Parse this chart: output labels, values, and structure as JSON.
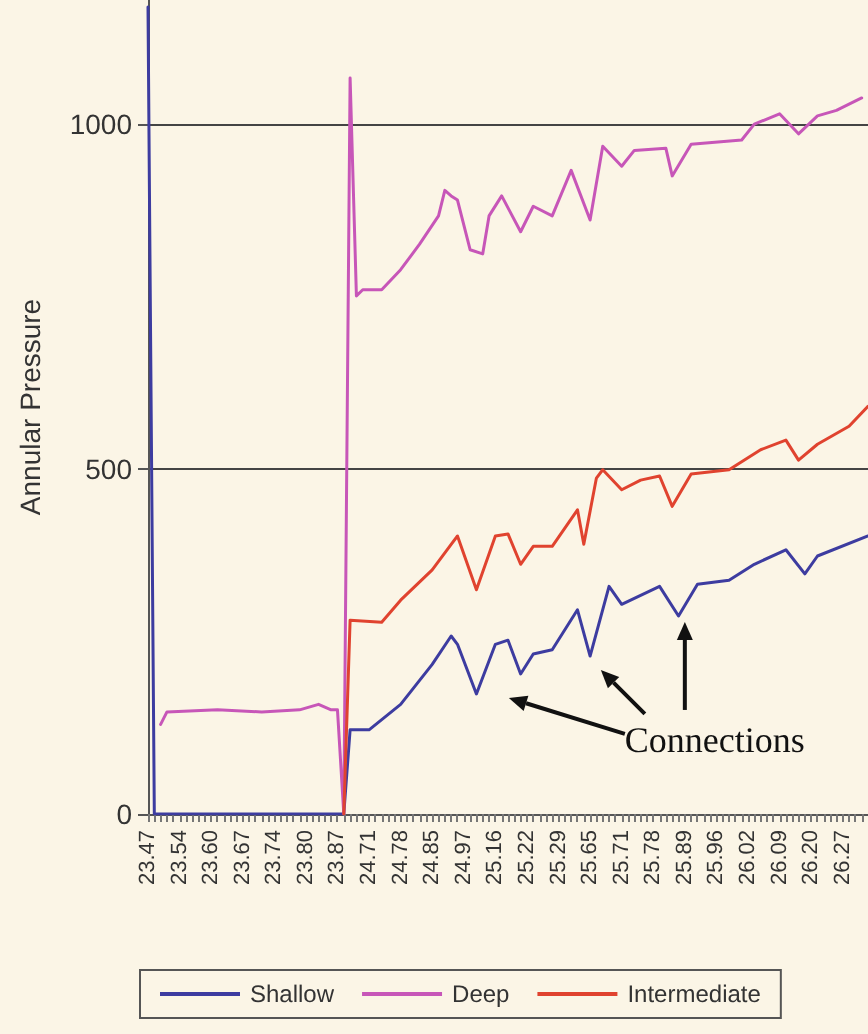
{
  "chart_data": {
    "type": "line",
    "ylabel": "Annular Pressure",
    "categories": [
      "23.47",
      null,
      null,
      null,
      null,
      "23.54",
      null,
      null,
      null,
      null,
      "23.60",
      null,
      null,
      null,
      null,
      "23.67",
      null,
      null,
      null,
      null,
      "23.74",
      null,
      null,
      null,
      null,
      "23.80",
      null,
      null,
      null,
      null,
      "23.87",
      null,
      null,
      null,
      null,
      "24.71",
      null,
      null,
      null,
      null,
      "24.78",
      null,
      null,
      null,
      null,
      "24.85",
      null,
      null,
      null,
      null,
      "24.97",
      null,
      null,
      null,
      null,
      "25.16",
      null,
      null,
      null,
      null,
      "25.22",
      null,
      null,
      null,
      null,
      "25.29",
      null,
      null,
      null,
      null,
      "25.65",
      null,
      null,
      null,
      null,
      "25.71",
      null,
      null,
      null,
      null,
      "25.78",
      null,
      null,
      null,
      null,
      "25.89",
      null,
      null,
      null,
      null,
      "25.96",
      null,
      null,
      null,
      null,
      "26.02",
      null,
      null,
      null,
      null,
      "26.09",
      null,
      null,
      null,
      null,
      "26.20",
      null,
      null,
      null,
      null,
      "26.27",
      null,
      null,
      null,
      null
    ],
    "series": [
      {
        "name": "Shallow",
        "color": "#3d3ca0",
        "values": [
          1170,
          0,
          null,
          null,
          null,
          null,
          null,
          null,
          null,
          null,
          null,
          null,
          null,
          null,
          null,
          null,
          null,
          null,
          null,
          null,
          null,
          null,
          null,
          null,
          null,
          null,
          null,
          null,
          null,
          null,
          null,
          0,
          122,
          null,
          null,
          122,
          null,
          null,
          null,
          null,
          159,
          null,
          null,
          null,
          null,
          217,
          null,
          null,
          258,
          246,
          null,
          null,
          174,
          null,
          null,
          246,
          null,
          252,
          null,
          203,
          null,
          232,
          null,
          null,
          238,
          null,
          null,
          null,
          296,
          null,
          229,
          null,
          null,
          330,
          null,
          304,
          null,
          null,
          null,
          null,
          null,
          330,
          null,
          null,
          287,
          null,
          null,
          333,
          null,
          null,
          null,
          null,
          339,
          null,
          null,
          null,
          362,
          null,
          null,
          null,
          null,
          383,
          null,
          null,
          348,
          null,
          374,
          null,
          null,
          null,
          null,
          null,
          null,
          null,
          403
        ]
      },
      {
        "name": "Deep",
        "color": "#c756b8",
        "values": [
          null,
          null,
          130,
          148,
          null,
          null,
          null,
          null,
          null,
          null,
          null,
          151,
          null,
          null,
          null,
          null,
          null,
          null,
          148,
          null,
          null,
          null,
          null,
          null,
          151,
          null,
          null,
          159,
          null,
          151,
          151,
          0,
          1067,
          751,
          760,
          null,
          null,
          760,
          null,
          null,
          789,
          null,
          null,
          826,
          null,
          null,
          867,
          904,
          896,
          890,
          null,
          818,
          null,
          812,
          867,
          null,
          896,
          null,
          null,
          844,
          null,
          881,
          null,
          null,
          867,
          null,
          null,
          933,
          null,
          null,
          861,
          null,
          968,
          null,
          null,
          939,
          null,
          962,
          null,
          null,
          null,
          null,
          965,
          925,
          null,
          null,
          971,
          null,
          null,
          null,
          null,
          null,
          null,
          null,
          977,
          null,
          1000,
          null,
          null,
          null,
          1015,
          null,
          null,
          986,
          null,
          null,
          1012,
          null,
          null,
          1020,
          null,
          null,
          null,
          1038,
          null
        ]
      },
      {
        "name": "Intermediate",
        "color": "#e0432f",
        "values": [
          null,
          null,
          null,
          null,
          null,
          null,
          null,
          null,
          null,
          null,
          null,
          null,
          null,
          null,
          null,
          null,
          null,
          null,
          null,
          null,
          null,
          null,
          null,
          null,
          null,
          null,
          null,
          null,
          null,
          null,
          null,
          0,
          281,
          null,
          null,
          null,
          null,
          278,
          null,
          null,
          310,
          null,
          null,
          null,
          null,
          354,
          null,
          null,
          391,
          403,
          null,
          null,
          325,
          null,
          null,
          403,
          null,
          406,
          null,
          362,
          null,
          388,
          null,
          null,
          388,
          null,
          null,
          null,
          441,
          391,
          null,
          487,
          499,
          null,
          null,
          470,
          null,
          null,
          484,
          null,
          null,
          490,
          null,
          446,
          null,
          null,
          493,
          null,
          null,
          null,
          null,
          null,
          499,
          null,
          null,
          null,
          null,
          528,
          null,
          null,
          null,
          542,
          null,
          513,
          null,
          null,
          536,
          null,
          null,
          null,
          null,
          562,
          null,
          null,
          591
        ]
      }
    ],
    "ylim": [
      0,
      1180
    ],
    "yticks": [
      0,
      500,
      1000
    ],
    "grid": "y",
    "legend": "bottom",
    "marker": "none",
    "line_style": "solid",
    "annotations": [
      {
        "text": "Connections",
        "x": "25.89",
        "y": 290
      }
    ]
  }
}
